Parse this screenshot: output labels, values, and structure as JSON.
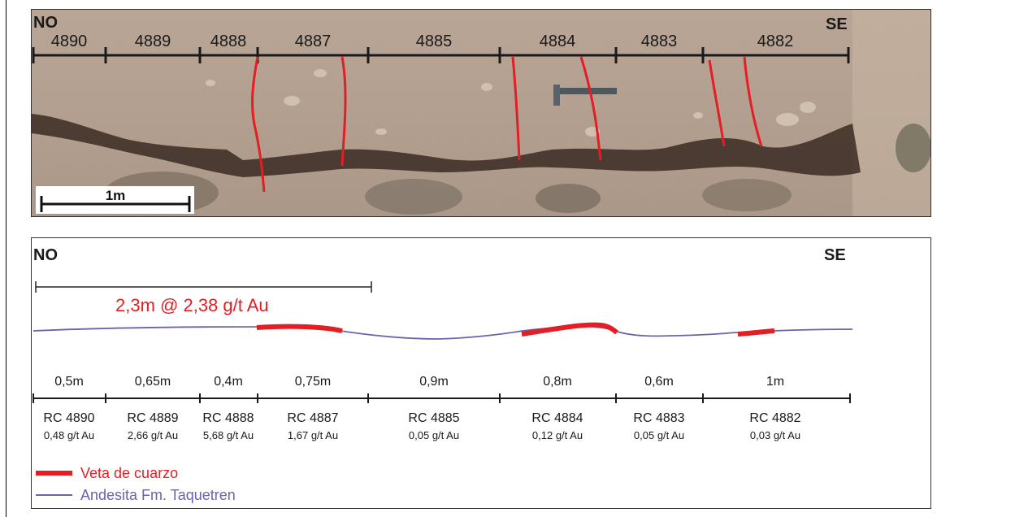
{
  "photo_panel": {
    "left_direction": "NO",
    "right_direction": "SE",
    "sample_ids": [
      "4890",
      "4889",
      "4888",
      "4887",
      "4885",
      "4884",
      "4883",
      "4882"
    ],
    "scale_label": "1m"
  },
  "profile_panel": {
    "left_direction": "NO",
    "right_direction": "SE",
    "interval_label": "2,3m @ 2,38 g/t Au",
    "samples": [
      {
        "width": "0,5m",
        "name": "RC 4890",
        "grade": "0,48 g/t Au"
      },
      {
        "width": "0,65m",
        "name": "RC 4889",
        "grade": "2,66 g/t Au"
      },
      {
        "width": "0,4m",
        "name": "RC 4888",
        "grade": "5,68 g/t Au"
      },
      {
        "width": "0,75m",
        "name": "RC 4887",
        "grade": "1,67 g/t Au"
      },
      {
        "width": "0,9m",
        "name": "RC 4885",
        "grade": "0,05 g/t Au"
      },
      {
        "width": "0,8m",
        "name": "RC 4884",
        "grade": "0,12 g/t Au"
      },
      {
        "width": "0,6m",
        "name": "RC 4883",
        "grade": "0,05 g/t Au"
      },
      {
        "width": "1m",
        "name": "RC 4882",
        "grade": "0,03 g/t Au"
      }
    ],
    "legend": [
      {
        "label": "Veta de cuarzo",
        "color": "#e31e24"
      },
      {
        "label": "Andesita Fm. Taquetren",
        "color": "#6a64a8"
      }
    ]
  }
}
